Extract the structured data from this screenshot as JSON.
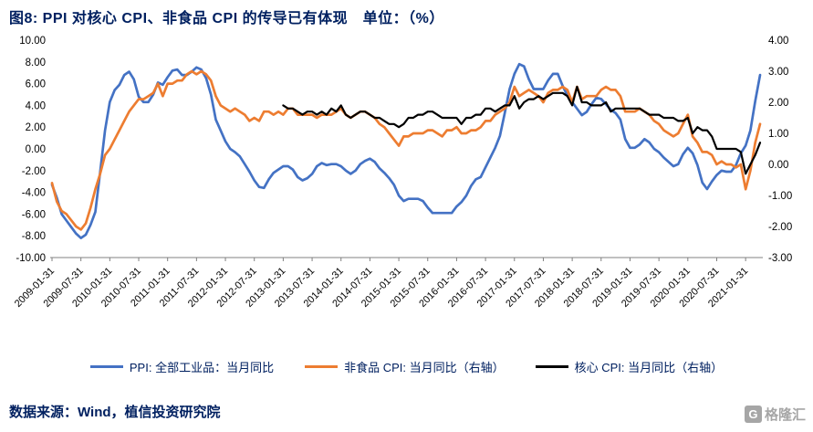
{
  "title": "图8: PPI 对核心 CPI、非食品 CPI 的传导已有体现　单位：（%）",
  "source": "数据来源：Wind，植信投资研究院",
  "logo": {
    "icon_letter": "G",
    "text": "格隆汇"
  },
  "colors": {
    "title_text": "#002060",
    "ppi_line": "#4472C4",
    "nonfood_line": "#ED7D31",
    "core_line": "#000000",
    "axis_text": "#000000",
    "axis_line": "#808080"
  },
  "chart_data": {
    "type": "line",
    "title": "PPI 对核心 CPI、非食品 CPI 的传导已有体现",
    "unit": "%",
    "x_start": "2009-01-31",
    "x_frequency": "monthly",
    "x_tick_labels": [
      "2009-01-31",
      "2009-07-31",
      "2010-01-31",
      "2010-07-31",
      "2011-01-31",
      "2011-07-31",
      "2012-01-31",
      "2012-07-31",
      "2013-01-31",
      "2013-07-31",
      "2014-01-31",
      "2014-07-31",
      "2015-01-31",
      "2015-07-31",
      "2016-01-31",
      "2016-07-31",
      "2017-01-31",
      "2017-07-31",
      "2018-01-31",
      "2018-07-31",
      "2019-01-31",
      "2019-07-31",
      "2020-01-31",
      "2020-07-31",
      "2021-01-31"
    ],
    "x_tick_every_n_points": 6,
    "left_axis": {
      "min": -10,
      "max": 10,
      "step": 2,
      "tick_labels": [
        "10.00",
        "8.00",
        "6.00",
        "4.00",
        "2.00",
        "0.00",
        "-2.00",
        "-4.00",
        "-6.00",
        "-8.00",
        "-10.00"
      ]
    },
    "right_axis": {
      "min": -3,
      "max": 4,
      "step": 1,
      "tick_labels": [
        "4.00",
        "3.00",
        "2.00",
        "1.00",
        "0.00",
        "-1.00",
        "-2.00",
        "-3.00"
      ]
    },
    "grid": false,
    "legend_position": "bottom",
    "series": [
      {
        "id": "ppi",
        "name": "PPI: 全部工业品：当月同比",
        "axis": "left",
        "color": "#4472C4",
        "values": [
          -3.3,
          -4.5,
          -6.0,
          -6.6,
          -7.2,
          -7.8,
          -8.2,
          -7.9,
          -7.0,
          -5.8,
          -2.1,
          1.7,
          4.3,
          5.4,
          5.9,
          6.8,
          7.1,
          6.4,
          4.8,
          4.3,
          4.3,
          5.0,
          6.1,
          5.9,
          6.6,
          7.2,
          7.3,
          6.8,
          6.8,
          7.1,
          7.5,
          7.3,
          6.5,
          5.0,
          2.7,
          1.7,
          0.7,
          0.0,
          -0.3,
          -0.7,
          -1.4,
          -2.1,
          -2.9,
          -3.5,
          -3.6,
          -2.8,
          -2.2,
          -1.9,
          -1.6,
          -1.6,
          -1.9,
          -2.6,
          -2.9,
          -2.7,
          -2.3,
          -1.6,
          -1.3,
          -1.5,
          -1.4,
          -1.4,
          -1.6,
          -2.0,
          -2.3,
          -2.0,
          -1.4,
          -1.1,
          -0.9,
          -1.2,
          -1.8,
          -2.2,
          -2.7,
          -3.3,
          -4.3,
          -4.8,
          -4.6,
          -4.6,
          -4.6,
          -4.8,
          -5.4,
          -5.9,
          -5.9,
          -5.9,
          -5.9,
          -5.9,
          -5.3,
          -4.9,
          -4.3,
          -3.4,
          -2.8,
          -2.6,
          -1.7,
          -0.8,
          0.1,
          1.2,
          3.3,
          5.5,
          6.9,
          7.8,
          7.6,
          6.4,
          5.5,
          5.5,
          5.5,
          6.3,
          6.9,
          6.9,
          5.8,
          4.9,
          4.3,
          3.7,
          3.1,
          3.4,
          4.1,
          4.7,
          4.6,
          4.1,
          3.6,
          3.3,
          2.7,
          0.9,
          0.1,
          0.1,
          0.4,
          0.9,
          0.6,
          0.0,
          -0.3,
          -0.8,
          -1.2,
          -1.6,
          -1.4,
          -0.5,
          0.1,
          -0.4,
          -1.5,
          -3.1,
          -3.7,
          -3.0,
          -2.4,
          -2.0,
          -2.1,
          -2.1,
          -1.5,
          -0.4,
          0.3,
          1.7,
          4.4,
          6.8
        ]
      },
      {
        "id": "nonfood-cpi",
        "name": "非食品 CPI: 当月同比（右轴）",
        "axis": "right",
        "color": "#ED7D31",
        "values": [
          -0.6,
          -1.2,
          -1.5,
          -1.6,
          -1.8,
          -2.0,
          -2.1,
          -1.9,
          -1.4,
          -0.8,
          -0.3,
          0.3,
          0.5,
          0.8,
          1.1,
          1.4,
          1.7,
          1.9,
          2.1,
          2.1,
          2.2,
          2.3,
          2.6,
          2.2,
          2.6,
          2.6,
          2.7,
          2.7,
          2.9,
          3.0,
          2.9,
          3.0,
          2.9,
          2.7,
          2.2,
          1.9,
          1.8,
          1.7,
          1.8,
          1.7,
          1.6,
          1.4,
          1.5,
          1.4,
          1.7,
          1.7,
          1.6,
          1.7,
          1.6,
          1.8,
          1.8,
          1.6,
          1.6,
          1.6,
          1.6,
          1.5,
          1.6,
          1.6,
          1.6,
          1.7,
          1.8,
          1.6,
          1.5,
          1.6,
          1.7,
          1.7,
          1.6,
          1.5,
          1.3,
          1.2,
          1.0,
          0.8,
          0.6,
          0.9,
          0.9,
          1.0,
          1.0,
          1.0,
          1.1,
          1.1,
          1.0,
          0.9,
          1.1,
          1.1,
          1.2,
          1.0,
          1.0,
          1.1,
          1.1,
          1.2,
          1.4,
          1.4,
          1.6,
          1.7,
          1.8,
          2.0,
          2.5,
          2.2,
          2.3,
          2.4,
          2.3,
          2.2,
          2.0,
          2.3,
          2.4,
          2.4,
          2.5,
          2.4,
          2.0,
          2.5,
          2.1,
          2.2,
          2.2,
          2.2,
          2.4,
          2.5,
          2.4,
          2.4,
          2.2,
          1.7,
          1.7,
          1.7,
          1.8,
          1.7,
          1.6,
          1.4,
          1.3,
          1.1,
          1.0,
          0.9,
          1.0,
          1.3,
          1.6,
          0.9,
          0.7,
          0.4,
          0.4,
          0.3,
          0.0,
          0.1,
          0.0,
          0.0,
          -0.1,
          0.0,
          -0.8,
          -0.2,
          0.7,
          1.3
        ]
      },
      {
        "id": "core-cpi",
        "name": "核心 CPI: 当月同比（右轴）",
        "axis": "right",
        "color": "#000000",
        "values": [
          null,
          null,
          null,
          null,
          null,
          null,
          null,
          null,
          null,
          null,
          null,
          null,
          null,
          null,
          null,
          null,
          null,
          null,
          null,
          null,
          null,
          null,
          null,
          null,
          null,
          null,
          null,
          null,
          null,
          null,
          null,
          null,
          null,
          null,
          null,
          null,
          null,
          null,
          null,
          null,
          null,
          null,
          null,
          null,
          null,
          null,
          null,
          null,
          1.9,
          1.8,
          1.8,
          1.7,
          1.6,
          1.7,
          1.7,
          1.6,
          1.7,
          1.6,
          1.8,
          1.7,
          1.9,
          1.6,
          1.5,
          1.6,
          1.7,
          1.7,
          1.6,
          1.5,
          1.5,
          1.4,
          1.3,
          1.3,
          1.2,
          1.3,
          1.5,
          1.5,
          1.6,
          1.6,
          1.7,
          1.7,
          1.6,
          1.5,
          1.5,
          1.5,
          1.5,
          1.3,
          1.5,
          1.5,
          1.6,
          1.6,
          1.8,
          1.8,
          1.7,
          1.8,
          1.9,
          1.9,
          2.2,
          1.8,
          2.0,
          2.1,
          2.1,
          2.2,
          2.1,
          2.2,
          2.3,
          2.3,
          2.3,
          2.2,
          1.9,
          2.5,
          2.0,
          2.0,
          1.9,
          1.9,
          1.9,
          2.0,
          1.7,
          1.8,
          1.8,
          1.8,
          1.8,
          1.8,
          1.8,
          1.7,
          1.6,
          1.6,
          1.6,
          1.5,
          1.5,
          1.5,
          1.4,
          1.4,
          1.5,
          1.0,
          1.2,
          1.1,
          1.1,
          0.9,
          0.5,
          0.5,
          0.5,
          0.5,
          0.5,
          0.4,
          -0.3,
          0.0,
          0.3,
          0.7
        ]
      }
    ]
  }
}
